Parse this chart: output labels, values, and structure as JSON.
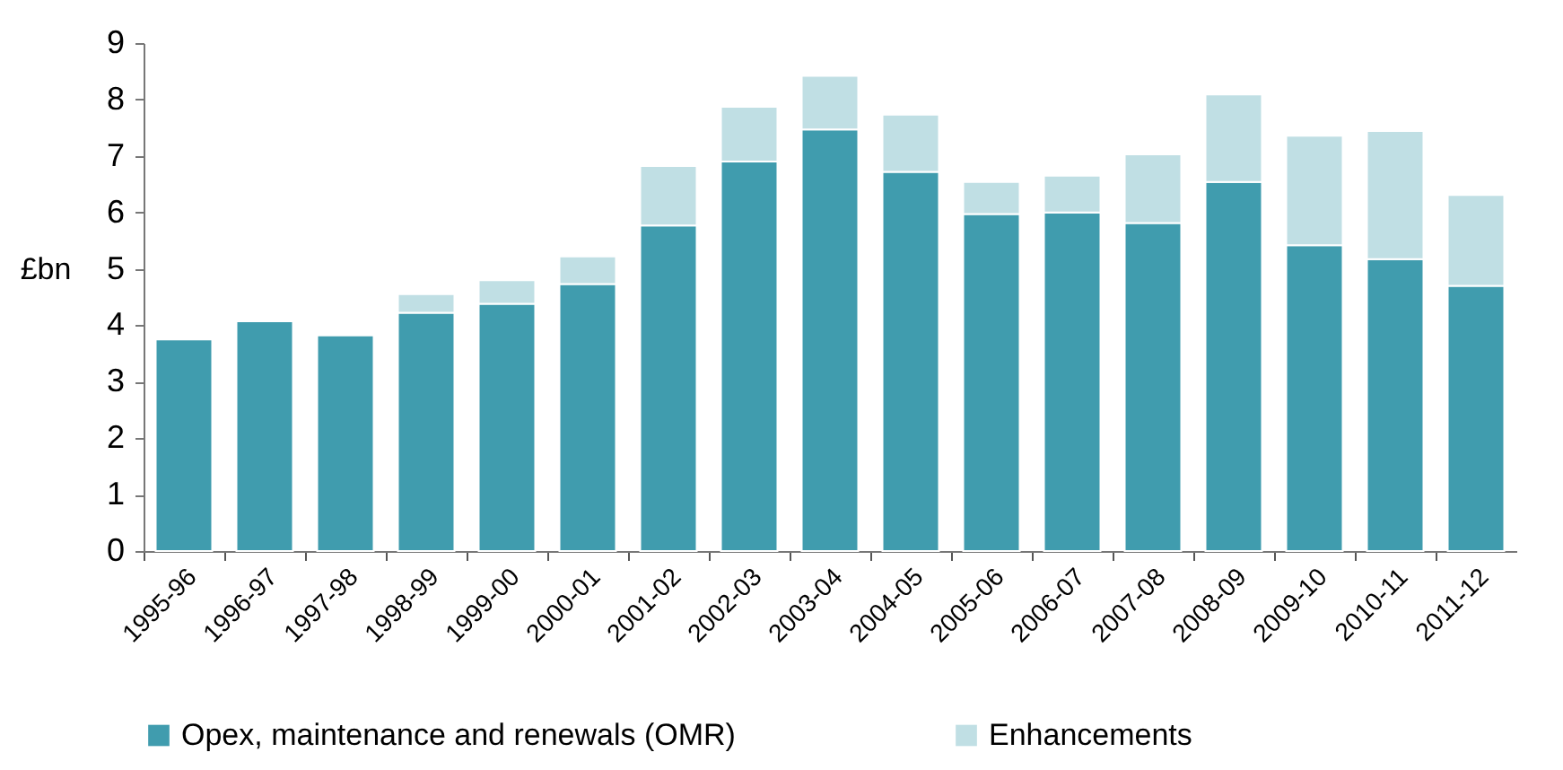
{
  "chart_data": {
    "type": "bar",
    "stacked": true,
    "ylabel": "£bn",
    "ylim": [
      0,
      9
    ],
    "yticks": [
      0,
      1,
      2,
      3,
      4,
      5,
      6,
      7,
      8,
      9
    ],
    "grid": false,
    "legend": "bottom",
    "categories": [
      "1995-96",
      "1996-97",
      "1997-98",
      "1998-99",
      "1999-00",
      "2000-01",
      "2001-02",
      "2002-03",
      "2003-04",
      "2004-05",
      "2005-06",
      "2006-07",
      "2007-08",
      "2008-09",
      "2009-10",
      "2010-11",
      "2011-12"
    ],
    "series": [
      {
        "name": "Opex, maintenance and renewals (OMR)",
        "color": "#409cae",
        "values": [
          3.75,
          4.07,
          3.82,
          4.22,
          4.38,
          4.73,
          5.77,
          6.9,
          7.47,
          6.72,
          5.97,
          6.0,
          5.81,
          6.54,
          5.42,
          5.17,
          4.7
        ]
      },
      {
        "name": "Enhancements",
        "color": "#c0dfe4",
        "values": [
          null,
          null,
          null,
          0.33,
          0.42,
          0.49,
          1.05,
          0.97,
          0.95,
          1.01,
          0.57,
          0.65,
          1.22,
          1.55,
          1.94,
          2.27,
          1.61
        ]
      }
    ]
  }
}
